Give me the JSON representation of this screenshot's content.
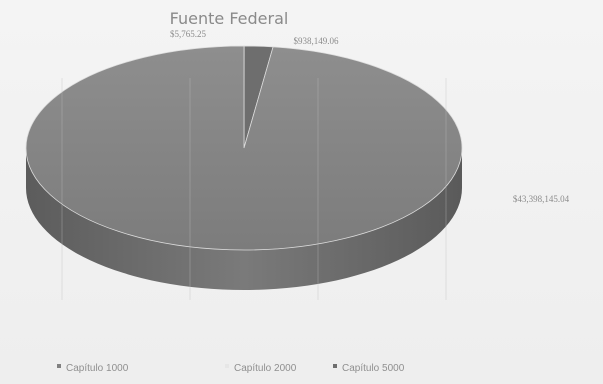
{
  "chart_data": {
    "type": "pie",
    "title": "Fuente Federal",
    "categories": [
      "Capítulo 1000",
      "Capítulo 2000",
      "Capítulo 5000"
    ],
    "values": [
      43398145.04,
      5765.25,
      938149.06
    ],
    "data_labels": [
      "$43,398,145.04",
      "$5,765.25",
      "$938,149.06"
    ],
    "legend_position": "bottom",
    "grid": false,
    "style": "3d",
    "colors": [
      "#808080",
      "#e6e6e6",
      "#6e6e6e"
    ]
  }
}
